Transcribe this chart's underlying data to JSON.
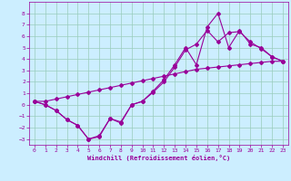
{
  "x": [
    0,
    1,
    2,
    3,
    4,
    5,
    6,
    7,
    8,
    9,
    10,
    11,
    12,
    13,
    14,
    15,
    16,
    17,
    18,
    19,
    20,
    21,
    22,
    23
  ],
  "line1": [
    0.3,
    0.0,
    -0.5,
    -1.3,
    -1.8,
    -3.0,
    -2.8,
    -1.2,
    -1.5,
    0.0,
    0.3,
    1.2,
    2.2,
    3.5,
    5.0,
    3.5,
    6.8,
    8.0,
    5.0,
    6.5,
    5.3,
    5.0,
    4.2,
    3.8
  ],
  "line2": [
    0.3,
    0.0,
    -0.5,
    -1.3,
    -1.8,
    -3.0,
    -2.7,
    -1.2,
    -1.6,
    0.0,
    0.3,
    1.1,
    2.0,
    3.3,
    4.8,
    5.3,
    6.5,
    5.5,
    6.3,
    6.4,
    5.5,
    4.9,
    4.2,
    3.8
  ],
  "line3": [
    0.3,
    0.3,
    0.5,
    0.7,
    0.9,
    1.1,
    1.3,
    1.5,
    1.7,
    1.9,
    2.1,
    2.3,
    2.5,
    2.7,
    2.9,
    3.1,
    3.2,
    3.3,
    3.4,
    3.5,
    3.6,
    3.7,
    3.8,
    3.8
  ],
  "color": "#990099",
  "bg_color": "#cceeff",
  "grid_color": "#99ccbb",
  "xlabel": "Windchill (Refroidissement éolien,°C)",
  "ylim": [
    -3.5,
    9.0
  ],
  "xlim": [
    -0.5,
    23.5
  ],
  "yticks": [
    -3,
    -2,
    -1,
    0,
    1,
    2,
    3,
    4,
    5,
    6,
    7,
    8
  ],
  "xticks": [
    0,
    1,
    2,
    3,
    4,
    5,
    6,
    7,
    8,
    9,
    10,
    11,
    12,
    13,
    14,
    15,
    16,
    17,
    18,
    19,
    20,
    21,
    22,
    23
  ],
  "marker": "D",
  "markersize": 2,
  "linewidth": 0.8,
  "tick_fontsize": 4.5,
  "xlabel_fontsize": 5.0
}
